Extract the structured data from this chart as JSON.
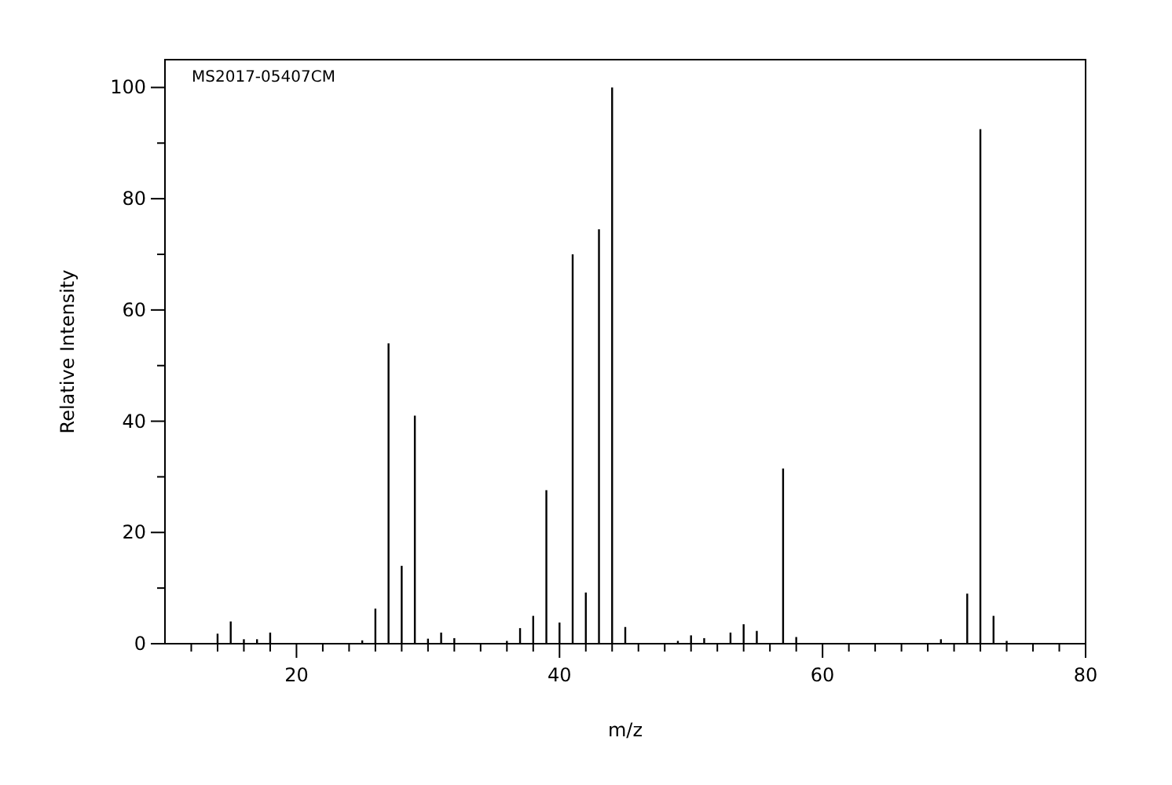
{
  "chart_data": {
    "type": "bar",
    "xlabel": "m/z",
    "ylabel": "Relative Intensity",
    "annotations": [
      "MS2017-05407CM"
    ],
    "x": [
      14,
      15,
      16,
      17,
      18,
      25,
      26,
      27,
      28,
      29,
      30,
      31,
      32,
      36,
      37,
      38,
      39,
      40,
      41,
      42,
      43,
      44,
      45,
      49,
      50,
      51,
      53,
      54,
      55,
      57,
      58,
      69,
      71,
      72,
      73,
      74
    ],
    "values": [
      1.8,
      4,
      0.8,
      0.8,
      2,
      0.6,
      6.3,
      54,
      14,
      41,
      0.9,
      2,
      1,
      0.5,
      2.8,
      5,
      27.6,
      3.8,
      70,
      9.2,
      74.5,
      100,
      3,
      0.5,
      1.5,
      1,
      2,
      3.5,
      2.3,
      31.5,
      1.2,
      0.8,
      9,
      92.5,
      5,
      0.5
    ],
    "color": "#000000",
    "xlim": [
      10,
      80
    ],
    "ylim": [
      0,
      105
    ],
    "xticks": [
      {
        "value": 12,
        "label": null
      },
      {
        "value": 14,
        "label": null
      },
      {
        "value": 16,
        "label": null
      },
      {
        "value": 18,
        "label": null
      },
      20,
      {
        "value": 22,
        "label": null
      },
      {
        "value": 24,
        "label": null
      },
      {
        "value": 26,
        "label": null
      },
      {
        "value": 28,
        "label": null
      },
      {
        "value": 30,
        "label": null
      },
      {
        "value": 32,
        "label": null
      },
      {
        "value": 34,
        "label": null
      },
      {
        "value": 36,
        "label": null
      },
      {
        "value": 38,
        "label": null
      },
      40,
      {
        "value": 42,
        "label": null
      },
      {
        "value": 44,
        "label": null
      },
      {
        "value": 46,
        "label": null
      },
      {
        "value": 48,
        "label": null
      },
      {
        "value": 50,
        "label": null
      },
      {
        "value": 52,
        "label": null
      },
      {
        "value": 54,
        "label": null
      },
      {
        "value": 56,
        "label": null
      },
      {
        "value": 58,
        "label": null
      },
      60,
      {
        "value": 62,
        "label": null
      },
      {
        "value": 64,
        "label": null
      },
      {
        "value": 66,
        "label": null
      },
      {
        "value": 68,
        "label": null
      },
      {
        "value": 70,
        "label": null
      },
      {
        "value": 72,
        "label": null
      },
      {
        "value": 74,
        "label": null
      },
      {
        "value": 76,
        "label": null
      },
      {
        "value": 78,
        "label": null
      },
      80
    ],
    "yticks": [
      0,
      {
        "value": 10,
        "label": null
      },
      20,
      {
        "value": 30,
        "label": null
      },
      40,
      {
        "value": 50,
        "label": null
      },
      60,
      {
        "value": 70,
        "label": null
      },
      80,
      {
        "value": 90,
        "label": null
      },
      100
    ],
    "grid": false
  }
}
